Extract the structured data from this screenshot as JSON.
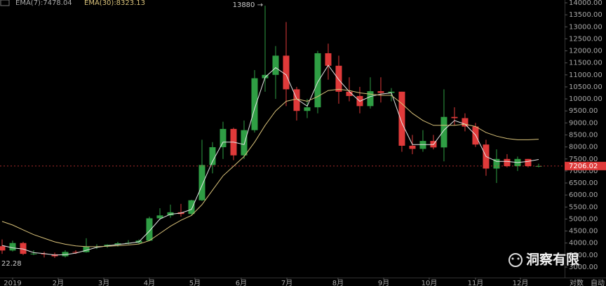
{
  "chart_data": {
    "type": "candlestick",
    "up_color": "#2f9e44",
    "down_color": "#e03a3a",
    "candles": {
      "open": [
        3870,
        3690,
        4000,
        3550,
        3560,
        3530,
        3450,
        3630,
        3620,
        3850,
        3860,
        3930,
        3990,
        4010,
        4100,
        5030,
        5150,
        5280,
        5210,
        5780,
        7250,
        7990,
        8750,
        7650,
        8700,
        10860,
        11000,
        11800,
        10400,
        9500,
        9650,
        11900,
        11380,
        10300,
        10120,
        9700,
        10320,
        10250,
        10300,
        8050,
        7920,
        8250,
        7980,
        9250,
        9200,
        8850,
        8100,
        7100,
        7500,
        7200,
        7500,
        7200
      ],
      "high": [
        4150,
        4100,
        4050,
        3700,
        3640,
        3600,
        3700,
        3700,
        4200,
        3950,
        3950,
        4050,
        4120,
        4150,
        5100,
        5450,
        5600,
        5630,
        5800,
        8300,
        8200,
        9050,
        8800,
        9100,
        11200,
        13880,
        12200,
        13200,
        10500,
        10000,
        12000,
        12300,
        11800,
        10900,
        10500,
        10900,
        10900,
        10450,
        10300,
        8500,
        8700,
        8500,
        10400,
        9650,
        9400,
        9000,
        8300,
        7900,
        7700,
        7600,
        7500,
        7300
      ],
      "low": [
        3550,
        3650,
        3500,
        3500,
        3400,
        3380,
        3400,
        3550,
        3600,
        3750,
        3800,
        3850,
        3950,
        3950,
        4080,
        4960,
        5050,
        5100,
        5150,
        5750,
        6900,
        7500,
        7450,
        7500,
        8600,
        10300,
        10000,
        9700,
        9100,
        9200,
        9400,
        10800,
        9800,
        9900,
        9400,
        9600,
        9850,
        9900,
        7800,
        7700,
        7800,
        7900,
        7400,
        8900,
        8650,
        8000,
        6800,
        6500,
        7150,
        7000,
        7150,
        7150
      ],
      "close": [
        3690,
        4000,
        3550,
        3560,
        3530,
        3450,
        3630,
        3620,
        3850,
        3860,
        3930,
        3990,
        4010,
        4100,
        5030,
        5150,
        5280,
        5210,
        5780,
        7250,
        7990,
        8750,
        7650,
        8700,
        10860,
        11000,
        11800,
        10400,
        9500,
        9650,
        11900,
        11380,
        10300,
        10120,
        9700,
        10320,
        10250,
        10300,
        8050,
        7920,
        8250,
        7980,
        9250,
        9200,
        8850,
        8100,
        7100,
        7500,
        7200,
        7500,
        7200,
        7206.02
      ]
    },
    "series": [
      {
        "name": "EMA(7):7478.04",
        "color": "#e6e6e6",
        "values": [
          3900,
          3800,
          3750,
          3600,
          3560,
          3500,
          3520,
          3580,
          3700,
          3820,
          3880,
          3940,
          3990,
          4050,
          4500,
          5000,
          5200,
          5250,
          5400,
          6400,
          7400,
          8200,
          8200,
          8100,
          9600,
          10900,
          11300,
          11000,
          10000,
          9700,
          10700,
          11400,
          10800,
          10300,
          9900,
          10100,
          10200,
          10250,
          9000,
          8100,
          8100,
          8100,
          8700,
          9100,
          8950,
          8500,
          7600,
          7400,
          7400,
          7350,
          7400,
          7478.04
        ]
      },
      {
        "name": "EMA(30):8323.13",
        "color": "#d9c27a",
        "values": [
          4900,
          4750,
          4550,
          4350,
          4200,
          4050,
          3950,
          3880,
          3850,
          3850,
          3870,
          3890,
          3920,
          3960,
          4100,
          4400,
          4700,
          4950,
          5150,
          5600,
          6200,
          6800,
          7200,
          7600,
          8200,
          8900,
          9500,
          9900,
          10000,
          9900,
          10100,
          10350,
          10400,
          10350,
          10250,
          10200,
          10150,
          10150,
          9800,
          9400,
          9100,
          8900,
          8900,
          8900,
          8950,
          8850,
          8600,
          8450,
          8350,
          8300,
          8300,
          8323.13
        ]
      }
    ],
    "last_price": 7206.02,
    "annotations": [
      "13880 →",
      "22.28"
    ],
    "xlim": [
      -0.2,
      53.47
    ],
    "xticks": [
      {
        "value": 1,
        "label": "2019"
      },
      {
        "value": 5.33,
        "label": "2月"
      },
      {
        "value": 9.67,
        "label": "3月"
      },
      {
        "value": 14,
        "label": "4月"
      },
      {
        "value": 18.33,
        "label": "5月"
      },
      {
        "value": 22.73,
        "label": "6月"
      },
      {
        "value": 27.07,
        "label": "7月"
      },
      {
        "value": 31.93,
        "label": "8月"
      },
      {
        "value": 36.27,
        "label": "9月"
      },
      {
        "value": 40.6,
        "label": "10月"
      },
      {
        "value": 45,
        "label": "11月"
      },
      {
        "value": 49.27,
        "label": "12月"
      }
    ],
    "ylim": [
      2562,
      14117
    ],
    "yticks": [
      {
        "value": 3000,
        "label": "3000.00"
      },
      {
        "value": 3500,
        "label": "3500.00"
      },
      {
        "value": 4000,
        "label": "4000.00"
      },
      {
        "value": 4500,
        "label": "4500.00"
      },
      {
        "value": 5000,
        "label": "5000.00"
      },
      {
        "value": 5500,
        "label": "5500.00"
      },
      {
        "value": 6000,
        "label": "6000.00"
      },
      {
        "value": 6500,
        "label": "6500.00"
      },
      {
        "value": 7000,
        "label": "7000.00"
      },
      {
        "value": 7500,
        "label": "7500.00"
      },
      {
        "value": 8000,
        "label": "8000.00"
      },
      {
        "value": 8500,
        "label": "8500.00"
      },
      {
        "value": 9000,
        "label": "9000.00"
      },
      {
        "value": 9500,
        "label": "9500.00"
      },
      {
        "value": 10000,
        "label": "10000.00"
      },
      {
        "value": 10500,
        "label": "10500.00"
      },
      {
        "value": 11000,
        "label": "11000.00"
      },
      {
        "value": 11500,
        "label": "11500.00"
      },
      {
        "value": 12000,
        "label": "12000.00"
      },
      {
        "value": 12500,
        "label": "12500.00"
      },
      {
        "value": 13000,
        "label": "13000.00"
      },
      {
        "value": 13500,
        "label": "13500.00"
      },
      {
        "value": 14000,
        "label": "14000.00"
      }
    ],
    "scale_buttons": [
      "对数",
      "自动"
    ],
    "watermark": "洞察有限"
  }
}
